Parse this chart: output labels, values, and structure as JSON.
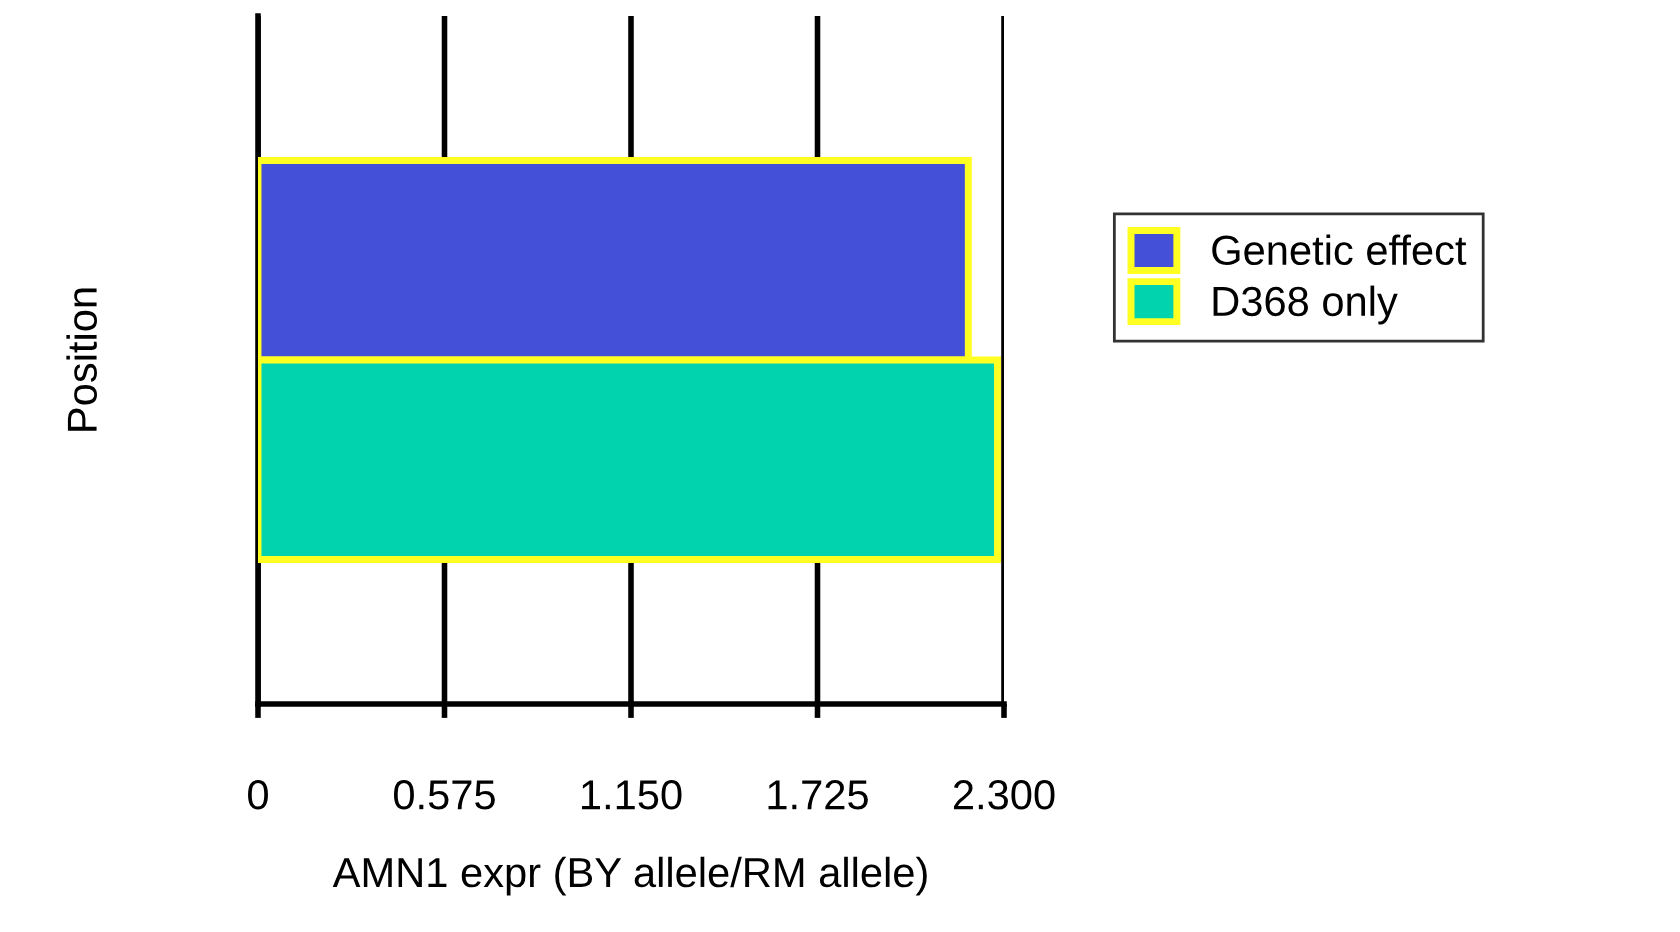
{
  "chart_data": {
    "type": "bar",
    "orientation": "horizontal",
    "xlabel": "AMN1 expr (BY allele/RM allele)",
    "ylabel": "Position",
    "categories": [
      null
    ],
    "series": [
      {
        "name": "Genetic effect",
        "color": "#4550d8",
        "values": [
          2.19
        ]
      },
      {
        "name": "D368 only",
        "color": "#00d3ad",
        "values": [
          2.28
        ]
      }
    ],
    "xlim": [
      0,
      2.3
    ],
    "xticks": [
      0,
      0.575,
      {
        "value": 1.15,
        "label": "1.150"
      },
      1.725,
      {
        "value": 2.3,
        "label": "2.300"
      }
    ],
    "grid": "x",
    "legend": "right"
  }
}
